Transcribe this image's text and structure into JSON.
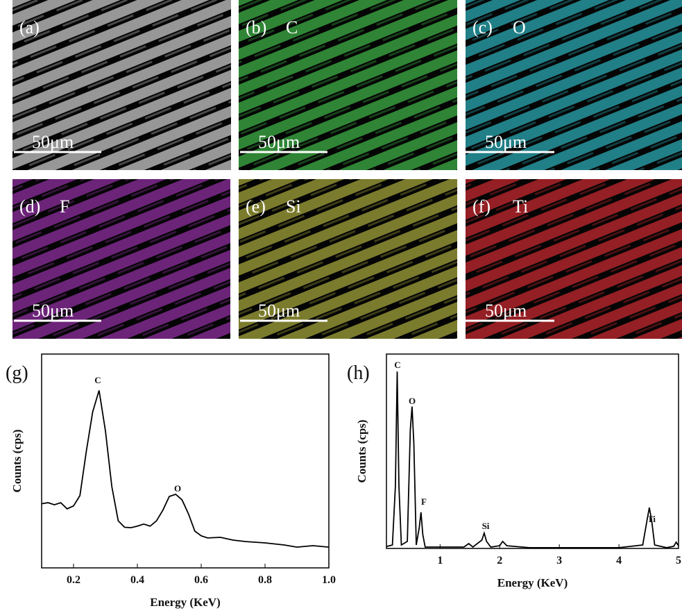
{
  "panels": [
    {
      "label": "(a)",
      "element": null,
      "scale": "50μm",
      "color": "#c8c8c8"
    },
    {
      "label": "(b)",
      "element": "C",
      "scale": "50μm",
      "color": "#3db045"
    },
    {
      "label": "(c)",
      "element": "O",
      "scale": "50μm",
      "color": "#2ba8b3"
    },
    {
      "label": "(d)",
      "element": "F",
      "scale": "50μm",
      "color": "#8e2ea0"
    },
    {
      "label": "(e)",
      "element": "Si",
      "scale": "50μm",
      "color": "#a3a33c"
    },
    {
      "label": "(f)",
      "element": "Ti",
      "scale": "50μm",
      "color": "#c4282e"
    }
  ],
  "chart_data": [
    {
      "type": "line",
      "label": "(g)",
      "xlabel": "Energy (KeV)",
      "ylabel": "Counts (cps)",
      "x": [
        0.1,
        0.12,
        0.14,
        0.16,
        0.18,
        0.2,
        0.22,
        0.24,
        0.26,
        0.28,
        0.3,
        0.32,
        0.34,
        0.36,
        0.38,
        0.4,
        0.42,
        0.44,
        0.46,
        0.48,
        0.5,
        0.52,
        0.54,
        0.56,
        0.58,
        0.6,
        0.62,
        0.66,
        0.7,
        0.74,
        0.8,
        0.86,
        0.9,
        0.95,
        1.0
      ],
      "series": [
        {
          "color": "#000000",
          "values": [
            30,
            30.5,
            29.5,
            30.5,
            27.6,
            29,
            33.8,
            54.5,
            73,
            83,
            64,
            38,
            22,
            19,
            18.8,
            19.5,
            20.5,
            19.5,
            22,
            27,
            33.4,
            34.4,
            31.8,
            25.3,
            17.2,
            15,
            14,
            14.3,
            13,
            12.3,
            11.7,
            10.7,
            9.7,
            10.4,
            9.7
          ]
        }
      ],
      "annotations": [
        "C",
        "O"
      ],
      "xlim": [
        0.1,
        1.0
      ],
      "ylim": [
        0,
        100
      ],
      "xticks": [
        0.2,
        0.4,
        0.6,
        0.8,
        {
          "value": 1,
          "label": "1.0"
        }
      ]
    },
    {
      "type": "line",
      "label": "(h)",
      "xlabel": "Energy (KeV)",
      "ylabel": "Counts (cps)",
      "x": [
        0.1,
        0.2,
        0.25,
        0.28,
        0.31,
        0.35,
        0.45,
        0.5,
        0.53,
        0.56,
        0.6,
        0.65,
        0.68,
        0.71,
        0.75,
        1.0,
        1.4,
        1.48,
        1.55,
        1.7,
        1.74,
        1.78,
        1.85,
        2.0,
        2.05,
        2.12,
        2.5,
        3,
        3.5,
        4,
        4.4,
        4.47,
        4.51,
        4.55,
        4.6,
        4.8,
        4.92,
        4.96,
        5
      ],
      "series": [
        {
          "color": "#000000",
          "values": [
            1,
            1.8,
            32,
            91,
            32,
            1.8,
            3.6,
            61,
            73,
            54,
            1.8,
            10.7,
            18.6,
            7.1,
            0.7,
            0.7,
            0.7,
            2.5,
            0.7,
            4.3,
            7.9,
            3.6,
            0.7,
            1.4,
            3.6,
            1.4,
            0.4,
            0.4,
            0.4,
            0.4,
            1.8,
            14.3,
            21,
            14.3,
            1.8,
            0.4,
            1.1,
            3.2,
            1.4
          ]
        }
      ],
      "annotations": [
        "C",
        "O",
        "F",
        "Si",
        "Ti"
      ],
      "xlim": [
        0.1,
        5
      ],
      "ylim": [
        0,
        100
      ],
      "xticks": [
        1,
        2,
        3,
        4,
        5
      ]
    }
  ]
}
